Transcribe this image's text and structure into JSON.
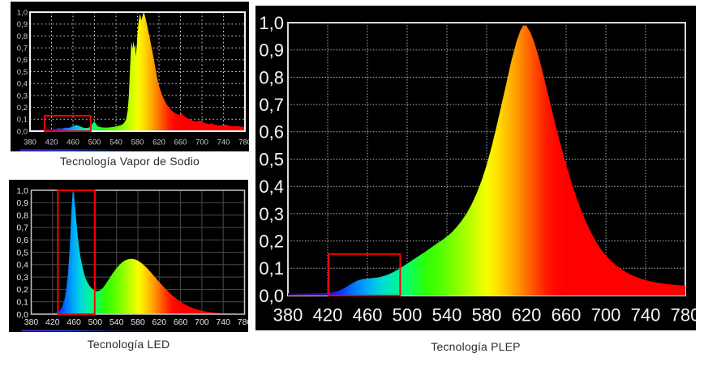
{
  "figure": {
    "background": "#ffffff",
    "panel_background": "#000000",
    "highlight_color": "#ff0000",
    "caption_color": "#2b2b2b",
    "spectrum_gradient": [
      [
        0.0,
        "#30004a"
      ],
      [
        0.045,
        "#460080"
      ],
      [
        0.085,
        "#4000c8"
      ],
      [
        0.115,
        "#2a14f0"
      ],
      [
        0.1425,
        "#0648ff"
      ],
      [
        0.165,
        "#0078ff"
      ],
      [
        0.19,
        "#009cff"
      ],
      [
        0.2125,
        "#00bef0"
      ],
      [
        0.2375,
        "#00dcd0"
      ],
      [
        0.2625,
        "#00ecae"
      ],
      [
        0.2875,
        "#00f884"
      ],
      [
        0.3125,
        "#12ff4c"
      ],
      [
        0.35,
        "#2fff02"
      ],
      [
        0.39,
        "#58ff00"
      ],
      [
        0.43,
        "#8eff00"
      ],
      [
        0.4675,
        "#c6ff00"
      ],
      [
        0.5,
        "#f6ff00"
      ],
      [
        0.5225,
        "#ffe600"
      ],
      [
        0.55,
        "#ffc000"
      ],
      [
        0.575,
        "#ff9c00"
      ],
      [
        0.6,
        "#ff7000"
      ],
      [
        0.625,
        "#ff4400"
      ],
      [
        0.65,
        "#ff1c00"
      ],
      [
        0.675,
        "#ff0600"
      ],
      [
        0.71,
        "#ff0000"
      ],
      [
        1.0,
        "#ff0000"
      ]
    ]
  },
  "chart_data": [
    {
      "id": "vapor-sodio",
      "type": "area",
      "title": "Tecnología Vapor de Sodio",
      "xlim": [
        380,
        780
      ],
      "ylim": [
        0,
        1
      ],
      "x_ticks": [
        380,
        420,
        460,
        500,
        540,
        580,
        620,
        660,
        700,
        740,
        780
      ],
      "y_tick_labels": [
        "1,0",
        "0,9",
        "0,8",
        "0,7",
        "0,6",
        "0,5",
        "0,4",
        "0,3",
        "0,2",
        "0,1",
        "0,0"
      ],
      "grid_style": "dotted-coarse",
      "grid_color": "#d6d6d6",
      "frame_color": "#f2f2f2",
      "label_color": "#c9c9c9",
      "highlight_box": {
        "wavelength_range": [
          407,
          493
        ],
        "value_range": [
          0,
          0.13
        ]
      },
      "points": [
        [
          380,
          0.012
        ],
        [
          390,
          0.013
        ],
        [
          400,
          0.015
        ],
        [
          410,
          0.016
        ],
        [
          420,
          0.018
        ],
        [
          428,
          0.02
        ],
        [
          434,
          0.026
        ],
        [
          440,
          0.022
        ],
        [
          446,
          0.03
        ],
        [
          451,
          0.027
        ],
        [
          456,
          0.033
        ],
        [
          461,
          0.046
        ],
        [
          466,
          0.052
        ],
        [
          470,
          0.047
        ],
        [
          474,
          0.038
        ],
        [
          479,
          0.03
        ],
        [
          484,
          0.026
        ],
        [
          489,
          0.028
        ],
        [
          494,
          0.046
        ],
        [
          498,
          0.078
        ],
        [
          501,
          0.073
        ],
        [
          505,
          0.045
        ],
        [
          510,
          0.034
        ],
        [
          516,
          0.031
        ],
        [
          523,
          0.03
        ],
        [
          530,
          0.032
        ],
        [
          537,
          0.037
        ],
        [
          544,
          0.044
        ],
        [
          550,
          0.052
        ],
        [
          555,
          0.068
        ],
        [
          559,
          0.1
        ],
        [
          562,
          0.18
        ],
        [
          564,
          0.3
        ],
        [
          566,
          0.52
        ],
        [
          568,
          0.7
        ],
        [
          569.5,
          0.75
        ],
        [
          571,
          0.69
        ],
        [
          572.5,
          0.76
        ],
        [
          574,
          0.7
        ],
        [
          575.5,
          0.73
        ],
        [
          577,
          0.63
        ],
        [
          579,
          0.74
        ],
        [
          581,
          0.87
        ],
        [
          583,
          0.95
        ],
        [
          585,
          0.99
        ],
        [
          587,
          0.93
        ],
        [
          589,
          0.96
        ],
        [
          591,
          1.0
        ],
        [
          593,
          0.985
        ],
        [
          595,
          0.95
        ],
        [
          597,
          0.91
        ],
        [
          600,
          0.845
        ],
        [
          603,
          0.78
        ],
        [
          606,
          0.71
        ],
        [
          609,
          0.64
        ],
        [
          612,
          0.565
        ],
        [
          615,
          0.49
        ],
        [
          618,
          0.42
        ],
        [
          621,
          0.37
        ],
        [
          625,
          0.315
        ],
        [
          629,
          0.27
        ],
        [
          634,
          0.228
        ],
        [
          639,
          0.196
        ],
        [
          644,
          0.172
        ],
        [
          649,
          0.154
        ],
        [
          654,
          0.142
        ],
        [
          658,
          0.136
        ],
        [
          662,
          0.152
        ],
        [
          666,
          0.132
        ],
        [
          671,
          0.115
        ],
        [
          676,
          0.102
        ],
        [
          681,
          0.092
        ],
        [
          686,
          0.084
        ],
        [
          691,
          0.08
        ],
        [
          695,
          0.092
        ],
        [
          699,
          0.082
        ],
        [
          704,
          0.07
        ],
        [
          709,
          0.063
        ],
        [
          714,
          0.059
        ],
        [
          718,
          0.066
        ],
        [
          723,
          0.056
        ],
        [
          728,
          0.051
        ],
        [
          734,
          0.048
        ],
        [
          739,
          0.054
        ],
        [
          744,
          0.057
        ],
        [
          749,
          0.047
        ],
        [
          754,
          0.043
        ],
        [
          759,
          0.04
        ],
        [
          764,
          0.043
        ],
        [
          769,
          0.04
        ],
        [
          774,
          0.037
        ],
        [
          780,
          0.034
        ]
      ]
    },
    {
      "id": "led",
      "type": "area",
      "title": "Tecnología LED",
      "xlim": [
        380,
        780
      ],
      "ylim": [
        0,
        1
      ],
      "x_ticks": [
        380,
        420,
        460,
        500,
        540,
        580,
        620,
        660,
        700,
        740,
        780
      ],
      "y_tick_labels": [
        "1,0",
        "0,9",
        "0,8",
        "0,7",
        "0,6",
        "0,5",
        "0,4",
        "0,3",
        "0,2",
        "0,1",
        "0,0"
      ],
      "grid_style": "solid-fine",
      "grid_color": "#4a4a4a",
      "frame_color": "#c8c8c8",
      "label_color": "#e9e9e9",
      "highlight_box": {
        "wavelength_range": [
          430,
          499
        ],
        "value_range": [
          0,
          1.0
        ]
      },
      "points": [
        [
          380,
          0.006
        ],
        [
          395,
          0.006
        ],
        [
          408,
          0.006
        ],
        [
          418,
          0.007
        ],
        [
          425,
          0.01
        ],
        [
          430,
          0.016
        ],
        [
          435,
          0.035
        ],
        [
          439,
          0.07
        ],
        [
          443,
          0.13
        ],
        [
          446,
          0.21
        ],
        [
          449,
          0.33
        ],
        [
          452,
          0.52
        ],
        [
          454,
          0.7
        ],
        [
          456,
          0.88
        ],
        [
          458,
          1.0
        ],
        [
          460,
          0.96
        ],
        [
          462,
          0.88
        ],
        [
          464,
          0.78
        ],
        [
          467,
          0.64
        ],
        [
          470,
          0.53
        ],
        [
          473,
          0.445
        ],
        [
          477,
          0.365
        ],
        [
          481,
          0.3
        ],
        [
          485,
          0.26
        ],
        [
          489,
          0.23
        ],
        [
          494,
          0.205
        ],
        [
          499,
          0.19
        ],
        [
          504,
          0.185
        ],
        [
          509,
          0.192
        ],
        [
          514,
          0.21
        ],
        [
          520,
          0.245
        ],
        [
          526,
          0.285
        ],
        [
          532,
          0.325
        ],
        [
          538,
          0.36
        ],
        [
          544,
          0.392
        ],
        [
          550,
          0.417
        ],
        [
          556,
          0.435
        ],
        [
          562,
          0.444
        ],
        [
          568,
          0.447
        ],
        [
          574,
          0.443
        ],
        [
          580,
          0.432
        ],
        [
          586,
          0.415
        ],
        [
          592,
          0.393
        ],
        [
          598,
          0.368
        ],
        [
          604,
          0.34
        ],
        [
          610,
          0.31
        ],
        [
          616,
          0.28
        ],
        [
          622,
          0.25
        ],
        [
          628,
          0.222
        ],
        [
          634,
          0.195
        ],
        [
          640,
          0.17
        ],
        [
          646,
          0.147
        ],
        [
          652,
          0.126
        ],
        [
          658,
          0.107
        ],
        [
          664,
          0.09
        ],
        [
          670,
          0.075
        ],
        [
          676,
          0.062
        ],
        [
          682,
          0.051
        ],
        [
          688,
          0.042
        ],
        [
          694,
          0.034
        ],
        [
          700,
          0.028
        ],
        [
          708,
          0.021
        ],
        [
          716,
          0.016
        ],
        [
          724,
          0.012
        ],
        [
          732,
          0.009
        ],
        [
          740,
          0.007
        ],
        [
          750,
          0.005
        ],
        [
          760,
          0.004
        ],
        [
          770,
          0.003
        ],
        [
          780,
          0.003
        ]
      ]
    },
    {
      "id": "plep",
      "type": "area",
      "title": "Tecnología PLEP",
      "xlim": [
        380,
        780
      ],
      "ylim": [
        0,
        1
      ],
      "x_ticks": [
        380,
        420,
        460,
        500,
        540,
        580,
        620,
        660,
        700,
        740,
        780
      ],
      "y_tick_labels": [
        "1,0",
        "0,9",
        "0,8",
        "0,7",
        "0,6",
        "0,5",
        "0,4",
        "0,3",
        "0,2",
        "0,1",
        "0,0"
      ],
      "grid_style": "dotted-fine",
      "grid_color": "#bfbfbf",
      "frame_color": "#d9d9d9",
      "label_color": "#f5f5f5",
      "highlight_box": {
        "wavelength_range": [
          421,
          493
        ],
        "value_range": [
          0,
          0.152
        ]
      },
      "points": [
        [
          380,
          0.008
        ],
        [
          395,
          0.008
        ],
        [
          408,
          0.008
        ],
        [
          418,
          0.009
        ],
        [
          425,
          0.012
        ],
        [
          430,
          0.016
        ],
        [
          435,
          0.024
        ],
        [
          440,
          0.034
        ],
        [
          445,
          0.046
        ],
        [
          450,
          0.055
        ],
        [
          455,
          0.06
        ],
        [
          460,
          0.062
        ],
        [
          465,
          0.064
        ],
        [
          470,
          0.066
        ],
        [
          475,
          0.07
        ],
        [
          480,
          0.076
        ],
        [
          485,
          0.084
        ],
        [
          490,
          0.094
        ],
        [
          495,
          0.105
        ],
        [
          500,
          0.117
        ],
        [
          505,
          0.129
        ],
        [
          510,
          0.141
        ],
        [
          515,
          0.153
        ],
        [
          520,
          0.165
        ],
        [
          525,
          0.178
        ],
        [
          530,
          0.191
        ],
        [
          535,
          0.203
        ],
        [
          540,
          0.216
        ],
        [
          545,
          0.232
        ],
        [
          550,
          0.252
        ],
        [
          555,
          0.275
        ],
        [
          560,
          0.302
        ],
        [
          565,
          0.335
        ],
        [
          570,
          0.375
        ],
        [
          575,
          0.422
        ],
        [
          580,
          0.478
        ],
        [
          585,
          0.545
        ],
        [
          590,
          0.62
        ],
        [
          595,
          0.7
        ],
        [
          600,
          0.78
        ],
        [
          605,
          0.862
        ],
        [
          610,
          0.93
        ],
        [
          614,
          0.972
        ],
        [
          617,
          0.99
        ],
        [
          620,
          0.988
        ],
        [
          624,
          0.965
        ],
        [
          628,
          0.928
        ],
        [
          632,
          0.88
        ],
        [
          636,
          0.825
        ],
        [
          640,
          0.765
        ],
        [
          645,
          0.69
        ],
        [
          650,
          0.615
        ],
        [
          655,
          0.545
        ],
        [
          660,
          0.48
        ],
        [
          665,
          0.42
        ],
        [
          670,
          0.364
        ],
        [
          675,
          0.314
        ],
        [
          680,
          0.27
        ],
        [
          685,
          0.232
        ],
        [
          690,
          0.198
        ],
        [
          695,
          0.17
        ],
        [
          700,
          0.147
        ],
        [
          706,
          0.124
        ],
        [
          712,
          0.106
        ],
        [
          718,
          0.091
        ],
        [
          724,
          0.079
        ],
        [
          730,
          0.069
        ],
        [
          736,
          0.061
        ],
        [
          742,
          0.055
        ],
        [
          748,
          0.05
        ],
        [
          754,
          0.046
        ],
        [
          762,
          0.042
        ],
        [
          770,
          0.039
        ],
        [
          780,
          0.036
        ]
      ]
    }
  ]
}
